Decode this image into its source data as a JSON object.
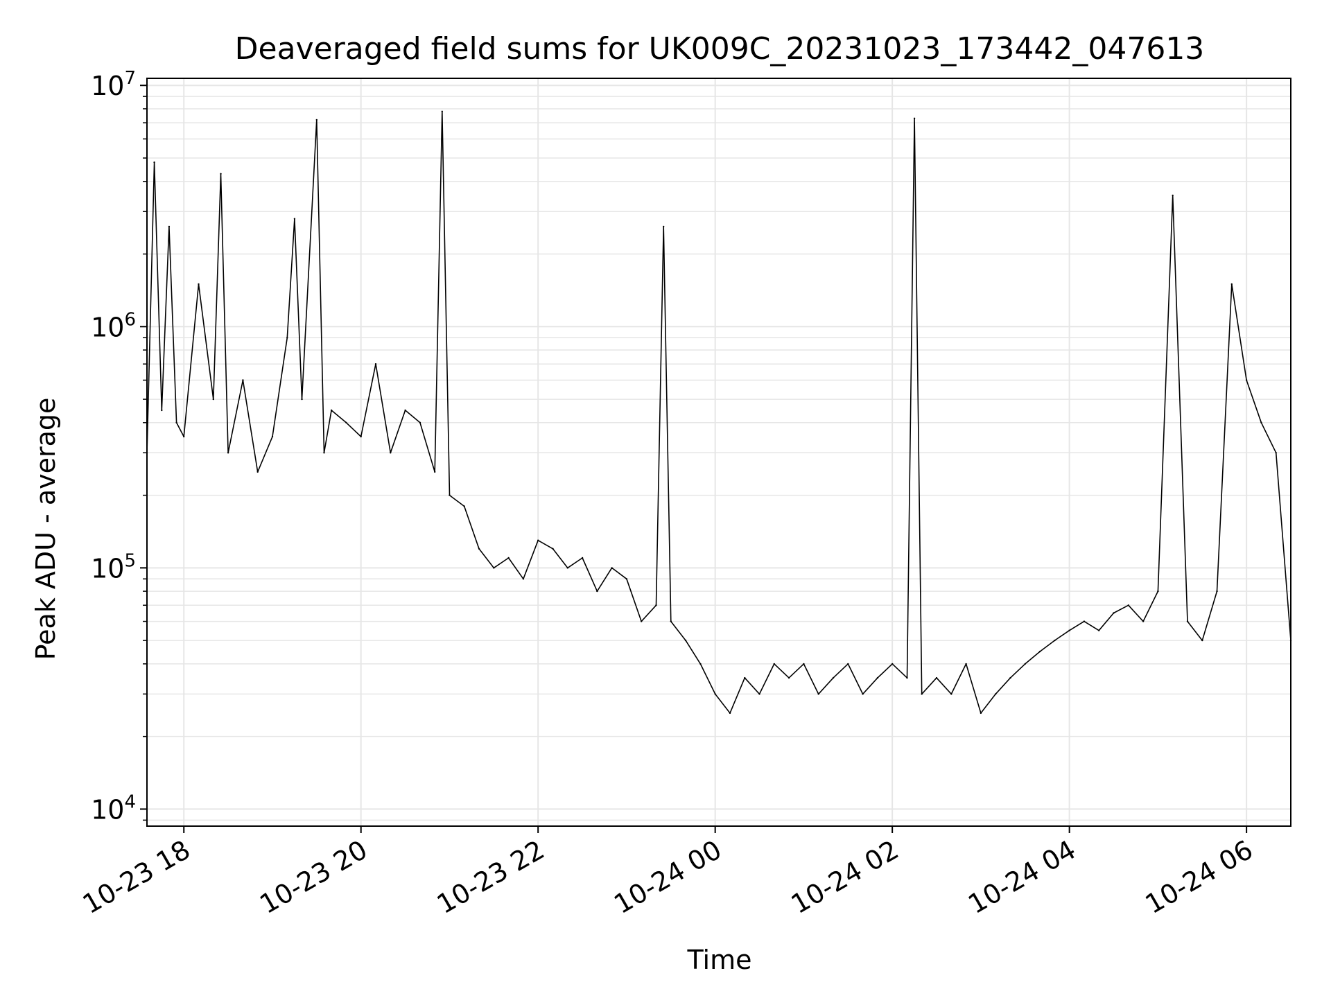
{
  "chart_data": {
    "type": "line",
    "title": "Deaveraged field sums for UK009C_20231023_173442_047613",
    "xlabel": "Time",
    "ylabel": "Peak ADU - average",
    "yscale": "log",
    "grid": true,
    "legend": "none",
    "line_color": "#000000",
    "grid_color": "#e6e6e6",
    "xlim": [
      "2023-10-23 17:35",
      "2023-10-24 06:30"
    ],
    "ylim": [
      8500,
      10700000
    ],
    "x_ticks": [
      {
        "value": "2023-10-23 18:00",
        "label": "10-23 18"
      },
      {
        "value": "2023-10-23 20:00",
        "label": "10-23 20"
      },
      {
        "value": "2023-10-23 22:00",
        "label": "10-23 22"
      },
      {
        "value": "2023-10-24 00:00",
        "label": "10-24 00"
      },
      {
        "value": "2023-10-24 02:00",
        "label": "10-24 02"
      },
      {
        "value": "2023-10-24 04:00",
        "label": "10-24 04"
      },
      {
        "value": "2023-10-24 06:00",
        "label": "10-24 06"
      }
    ],
    "y_ticks": [
      {
        "value": 10000,
        "base": "10",
        "exp": "4"
      },
      {
        "value": 100000,
        "base": "10",
        "exp": "5"
      },
      {
        "value": 1000000,
        "base": "10",
        "exp": "6"
      },
      {
        "value": 10000000,
        "base": "10",
        "exp": "7"
      }
    ],
    "series": [
      {
        "values": {
          "x": [
            "2023-10-23 17:35",
            "2023-10-23 17:40",
            "2023-10-23 17:45",
            "2023-10-23 17:50",
            "2023-10-23 17:55",
            "2023-10-23 18:00",
            "2023-10-23 18:10",
            "2023-10-23 18:20",
            "2023-10-23 18:25",
            "2023-10-23 18:30",
            "2023-10-23 18:40",
            "2023-10-23 18:50",
            "2023-10-23 19:00",
            "2023-10-23 19:10",
            "2023-10-23 19:15",
            "2023-10-23 19:20",
            "2023-10-23 19:30",
            "2023-10-23 19:35",
            "2023-10-23 19:40",
            "2023-10-23 19:50",
            "2023-10-23 20:00",
            "2023-10-23 20:10",
            "2023-10-23 20:20",
            "2023-10-23 20:30",
            "2023-10-23 20:40",
            "2023-10-23 20:50",
            "2023-10-23 20:55",
            "2023-10-23 21:00",
            "2023-10-23 21:10",
            "2023-10-23 21:20",
            "2023-10-23 21:30",
            "2023-10-23 21:40",
            "2023-10-23 21:50",
            "2023-10-23 22:00",
            "2023-10-23 22:10",
            "2023-10-23 22:20",
            "2023-10-23 22:30",
            "2023-10-23 22:40",
            "2023-10-23 22:50",
            "2023-10-23 23:00",
            "2023-10-23 23:10",
            "2023-10-23 23:20",
            "2023-10-23 23:25",
            "2023-10-23 23:30",
            "2023-10-23 23:40",
            "2023-10-23 23:50",
            "2023-10-24 00:00",
            "2023-10-24 00:10",
            "2023-10-24 00:20",
            "2023-10-24 00:30",
            "2023-10-24 00:40",
            "2023-10-24 00:50",
            "2023-10-24 01:00",
            "2023-10-24 01:10",
            "2023-10-24 01:20",
            "2023-10-24 01:30",
            "2023-10-24 01:40",
            "2023-10-24 01:50",
            "2023-10-24 02:00",
            "2023-10-24 02:10",
            "2023-10-24 02:15",
            "2023-10-24 02:20",
            "2023-10-24 02:30",
            "2023-10-24 02:40",
            "2023-10-24 02:50",
            "2023-10-24 03:00",
            "2023-10-24 03:10",
            "2023-10-24 03:20",
            "2023-10-24 03:30",
            "2023-10-24 03:40",
            "2023-10-24 03:50",
            "2023-10-24 04:00",
            "2023-10-24 04:10",
            "2023-10-24 04:20",
            "2023-10-24 04:30",
            "2023-10-24 04:40",
            "2023-10-24 04:50",
            "2023-10-24 05:00",
            "2023-10-24 05:10",
            "2023-10-24 05:20",
            "2023-10-24 05:30",
            "2023-10-24 05:40",
            "2023-10-24 05:50",
            "2023-10-24 06:00",
            "2023-10-24 06:10",
            "2023-10-24 06:20",
            "2023-10-24 06:30"
          ],
          "y": [
            300000,
            4800000,
            450000,
            2600000,
            400000,
            350000,
            1500000,
            500000,
            4300000,
            300000,
            600000,
            250000,
            350000,
            900000,
            2800000,
            500000,
            7200000,
            300000,
            450000,
            400000,
            350000,
            700000,
            300000,
            450000,
            400000,
            250000,
            7800000,
            200000,
            180000,
            120000,
            100000,
            110000,
            90000,
            130000,
            120000,
            100000,
            110000,
            80000,
            100000,
            90000,
            60000,
            70000,
            2600000,
            60000,
            50000,
            40000,
            30000,
            25000,
            35000,
            30000,
            40000,
            35000,
            40000,
            30000,
            35000,
            40000,
            30000,
            35000,
            40000,
            35000,
            7300000,
            30000,
            35000,
            30000,
            40000,
            25000,
            30000,
            35000,
            40000,
            45000,
            50000,
            55000,
            60000,
            55000,
            65000,
            70000,
            60000,
            80000,
            3500000,
            60000,
            50000,
            80000,
            1500000,
            600000,
            400000,
            300000,
            50000
          ]
        }
      }
    ]
  }
}
